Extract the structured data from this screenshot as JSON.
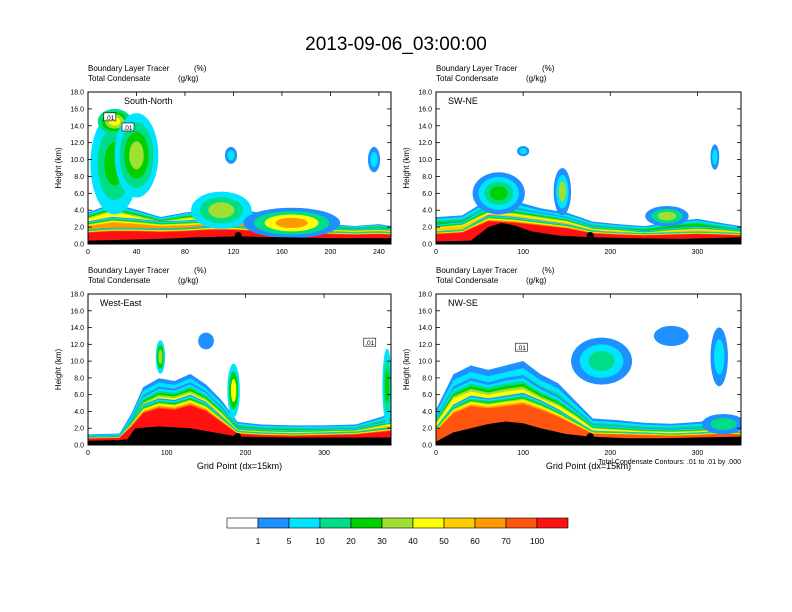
{
  "title": "2013-09-06_03:00:00",
  "panel_header": {
    "left_line1": "Boundary Layer Tracer",
    "left_line2": "Total Condensate",
    "right_line1": "(%)",
    "right_line2": "(g/kg)"
  },
  "footnote": "Total Condensate Contours: .01 to .01 by .000",
  "colorbar": {
    "colors": [
      "#ffffff",
      "#1e90ff",
      "#00e5ff",
      "#00dd88",
      "#00d000",
      "#a0e030",
      "#ffff00",
      "#ffcc00",
      "#ff9900",
      "#ff5511",
      "#ff1111"
    ],
    "labels": [
      "1",
      "5",
      "10",
      "20",
      "30",
      "40",
      "50",
      "60",
      "70",
      "100"
    ]
  },
  "chart_data": [
    {
      "type": "heatmap",
      "name": "South-North",
      "xlabel": "",
      "ylabel": "Height (km)",
      "xlim": [
        0,
        250
      ],
      "ylim": [
        0,
        18
      ],
      "xticks": [
        "0",
        "40",
        "80",
        "120",
        "160",
        "200",
        "240"
      ],
      "yticks": [
        "0.0",
        "2.0",
        "4.0",
        "6.0",
        "8.0",
        "10.0",
        "12.0",
        "14.0",
        "16.0",
        "18.0"
      ],
      "marker": {
        "x": 124,
        "y": 1.0
      },
      "contour_labels": [
        {
          "text": ".01",
          "x": 18,
          "y": 15.0
        },
        {
          "text": ".01",
          "x": 33,
          "y": 13.8
        }
      ],
      "terrain": [
        [
          0,
          0.4
        ],
        [
          30,
          0.5
        ],
        [
          60,
          0.6
        ],
        [
          90,
          0.8
        ],
        [
          124,
          0.9
        ],
        [
          160,
          0.8
        ],
        [
          200,
          0.7
        ],
        [
          250,
          0.7
        ]
      ],
      "blobs": [
        {
          "x": 22,
          "y": 9.5,
          "rx": 20,
          "ry": 6,
          "levels": [
            2,
            3,
            4
          ]
        },
        {
          "x": 22,
          "y": 14.5,
          "rx": 14,
          "ry": 1.5,
          "levels": [
            3,
            4,
            5,
            6
          ]
        },
        {
          "x": 40,
          "y": 10.5,
          "rx": 18,
          "ry": 5,
          "levels": [
            2,
            3,
            4,
            5
          ]
        },
        {
          "x": 110,
          "y": 4.0,
          "rx": 25,
          "ry": 2.2,
          "levels": [
            2,
            3,
            5
          ]
        },
        {
          "x": 118,
          "y": 10.5,
          "rx": 5,
          "ry": 1.0,
          "levels": [
            1,
            2
          ]
        },
        {
          "x": 236,
          "y": 10.0,
          "rx": 5,
          "ry": 1.5,
          "levels": [
            1,
            2
          ]
        },
        {
          "x": 168,
          "y": 2.5,
          "rx": 40,
          "ry": 1.8,
          "levels": [
            1,
            3,
            6,
            8
          ]
        }
      ],
      "bands": [
        {
          "x": [
            0,
            20,
            40,
            60,
            80,
            100,
            120,
            140,
            160,
            180,
            200,
            220,
            240,
            250
          ],
          "top": [
            3.5,
            4.5,
            3.8,
            3.0,
            3.5,
            3.8,
            4.0,
            3.5,
            2.8,
            2.5,
            2.2,
            2.0,
            2.2,
            2.0
          ],
          "level": 6
        },
        {
          "x": [
            0,
            20,
            40,
            60,
            80,
            100,
            120,
            140,
            160,
            180,
            200,
            220,
            240,
            250
          ],
          "top": [
            2.5,
            3.0,
            2.8,
            2.5,
            2.6,
            2.8,
            3.0,
            2.6,
            2.2,
            2.0,
            1.8,
            1.7,
            1.8,
            1.7
          ],
          "level": 8
        },
        {
          "x": [
            0,
            20,
            40,
            60,
            80,
            100,
            120,
            140,
            160,
            180,
            200,
            220,
            240,
            250
          ],
          "top": [
            1.6,
            1.8,
            1.8,
            1.7,
            1.8,
            2.0,
            2.0,
            1.8,
            1.6,
            1.5,
            1.4,
            1.3,
            1.4,
            1.3
          ],
          "level": 10
        }
      ]
    },
    {
      "type": "heatmap",
      "name": "SW-NE",
      "xlabel": "",
      "ylabel": "Height (km)",
      "xlim": [
        0,
        350
      ],
      "ylim": [
        0,
        18
      ],
      "xticks": [
        "0",
        "100",
        "200",
        "300"
      ],
      "yticks": [
        "0.0",
        "2.0",
        "4.0",
        "6.0",
        "8.0",
        "10.0",
        "12.0",
        "14.0",
        "16.0",
        "18.0"
      ],
      "marker": {
        "x": 177,
        "y": 1.0
      },
      "contour_labels": [],
      "terrain": [
        [
          0,
          0.3
        ],
        [
          40,
          0.4
        ],
        [
          60,
          2.0
        ],
        [
          75,
          2.5
        ],
        [
          90,
          2.2
        ],
        [
          110,
          1.5
        ],
        [
          140,
          1.0
        ],
        [
          177,
          0.8
        ],
        [
          220,
          0.7
        ],
        [
          280,
          0.6
        ],
        [
          350,
          0.8
        ]
      ],
      "blobs": [
        {
          "x": 72,
          "y": 6.0,
          "rx": 30,
          "ry": 2.5,
          "levels": [
            1,
            2,
            3,
            4
          ]
        },
        {
          "x": 145,
          "y": 6.2,
          "rx": 10,
          "ry": 2.8,
          "levels": [
            1,
            2,
            5
          ]
        },
        {
          "x": 320,
          "y": 10.3,
          "rx": 5,
          "ry": 1.5,
          "levels": [
            1,
            2
          ]
        },
        {
          "x": 100,
          "y": 11.0,
          "rx": 7,
          "ry": 0.6,
          "levels": [
            1,
            2
          ]
        },
        {
          "x": 265,
          "y": 3.3,
          "rx": 25,
          "ry": 1.2,
          "levels": [
            1,
            3,
            5
          ]
        }
      ],
      "bands": [
        {
          "x": [
            0,
            30,
            60,
            90,
            120,
            150,
            180,
            210,
            240,
            270,
            300,
            330,
            350
          ],
          "top": [
            3.0,
            3.2,
            5.0,
            4.8,
            4.0,
            3.5,
            2.5,
            2.2,
            2.0,
            2.5,
            2.8,
            2.3,
            2.0
          ],
          "level": 4
        },
        {
          "x": [
            0,
            30,
            60,
            90,
            120,
            150,
            180,
            210,
            240,
            270,
            300,
            330,
            350
          ],
          "top": [
            2.2,
            2.5,
            4.2,
            4.0,
            3.5,
            3.0,
            2.0,
            1.8,
            1.5,
            1.8,
            2.0,
            1.8,
            1.6
          ],
          "level": 7
        },
        {
          "x": [
            0,
            30,
            60,
            90,
            120,
            150,
            180,
            210,
            240,
            270,
            300,
            330,
            350
          ],
          "top": [
            1.4,
            1.6,
            3.2,
            3.0,
            2.6,
            2.2,
            1.5,
            1.3,
            1.2,
            1.3,
            1.4,
            1.3,
            1.2
          ],
          "level": 10
        }
      ]
    },
    {
      "type": "heatmap",
      "name": "West-East",
      "xlabel": "Grid Point (dx=15km)",
      "ylabel": "Height (km)",
      "xlim": [
        0,
        385
      ],
      "ylim": [
        0,
        18
      ],
      "xticks": [
        "0",
        "100",
        "200",
        "300"
      ],
      "yticks": [
        "0.0",
        "2.0",
        "4.0",
        "6.0",
        "8.0",
        "10.0",
        "12.0",
        "14.0",
        "16.0",
        "18.0"
      ],
      "marker": {
        "x": 190,
        "y": 1.0
      },
      "contour_labels": [
        {
          "text": ".01",
          "x": 358,
          "y": 12.2
        }
      ],
      "terrain": [
        [
          0,
          0.5
        ],
        [
          40,
          0.6
        ],
        [
          50,
          0.7
        ],
        [
          60,
          2.0
        ],
        [
          90,
          2.2
        ],
        [
          130,
          2.0
        ],
        [
          160,
          1.5
        ],
        [
          190,
          1.0
        ],
        [
          250,
          0.9
        ],
        [
          300,
          0.9
        ],
        [
          385,
          0.9
        ]
      ],
      "blobs": [
        {
          "x": 92,
          "y": 10.5,
          "rx": 6,
          "ry": 2.0,
          "levels": [
            2,
            4,
            5
          ]
        },
        {
          "x": 150,
          "y": 12.4,
          "rx": 10,
          "ry": 1.0,
          "levels": [
            1
          ]
        },
        {
          "x": 185,
          "y": 6.5,
          "rx": 8,
          "ry": 3.2,
          "levels": [
            2,
            4,
            6
          ]
        },
        {
          "x": 380,
          "y": 7.0,
          "rx": 6,
          "ry": 4.5,
          "levels": [
            2,
            3,
            4
          ]
        }
      ],
      "bands": [
        {
          "x": [
            0,
            40,
            55,
            70,
            90,
            110,
            130,
            150,
            170,
            190,
            220,
            260,
            300,
            340,
            385
          ],
          "top": [
            1.2,
            1.3,
            3.5,
            6.5,
            7.5,
            7.2,
            8.0,
            6.8,
            5.0,
            2.6,
            2.3,
            2.2,
            2.2,
            2.3,
            3.5
          ],
          "level": 4
        },
        {
          "x": [
            0,
            40,
            55,
            70,
            90,
            110,
            130,
            150,
            170,
            190,
            220,
            260,
            300,
            340,
            385
          ],
          "top": [
            1.0,
            1.1,
            3.0,
            5.5,
            6.5,
            6.3,
            7.0,
            6.0,
            4.2,
            2.0,
            1.8,
            1.7,
            1.8,
            1.9,
            2.8
          ],
          "level": 7
        },
        {
          "x": [
            0,
            40,
            55,
            70,
            90,
            110,
            130,
            150,
            170,
            190,
            220,
            260,
            300,
            340,
            385
          ],
          "top": [
            0.9,
            1.0,
            2.6,
            4.5,
            5.2,
            5.0,
            5.6,
            4.8,
            3.2,
            1.6,
            1.4,
            1.3,
            1.4,
            1.5,
            2.0
          ],
          "level": 10
        }
      ]
    },
    {
      "type": "heatmap",
      "name": "NW-SE",
      "xlabel": "Grid Point (dx=15km)",
      "ylabel": "Height (km)",
      "xlim": [
        0,
        350
      ],
      "ylim": [
        0,
        18
      ],
      "xticks": [
        "0",
        "100",
        "200",
        "300"
      ],
      "yticks": [
        "0.0",
        "2.0",
        "4.0",
        "6.0",
        "8.0",
        "10.0",
        "12.0",
        "14.0",
        "16.0",
        "18.0"
      ],
      "marker": {
        "x": 177,
        "y": 1.0
      },
      "contour_labels": [
        {
          "text": ".01",
          "x": 98,
          "y": 11.6
        }
      ],
      "terrain": [
        [
          0,
          0.4
        ],
        [
          20,
          1.5
        ],
        [
          40,
          2.0
        ],
        [
          60,
          2.5
        ],
        [
          80,
          2.8
        ],
        [
          100,
          2.6
        ],
        [
          120,
          2.0
        ],
        [
          150,
          1.3
        ],
        [
          177,
          1.0
        ],
        [
          220,
          0.8
        ],
        [
          260,
          0.8
        ],
        [
          300,
          0.9
        ],
        [
          350,
          1.0
        ]
      ],
      "blobs": [
        {
          "x": 190,
          "y": 10.0,
          "rx": 35,
          "ry": 2.8,
          "levels": [
            1,
            2,
            3
          ]
        },
        {
          "x": 270,
          "y": 13.0,
          "rx": 20,
          "ry": 1.2,
          "levels": [
            1
          ]
        },
        {
          "x": 325,
          "y": 10.5,
          "rx": 10,
          "ry": 3.5,
          "levels": [
            1,
            2
          ]
        },
        {
          "x": 330,
          "y": 2.5,
          "rx": 25,
          "ry": 1.2,
          "levels": [
            1,
            3
          ]
        }
      ],
      "bands": [
        {
          "x": [
            0,
            20,
            40,
            60,
            80,
            100,
            120,
            140,
            160,
            180,
            210,
            240,
            270,
            300,
            330,
            350
          ],
          "top": [
            4.0,
            8.0,
            9.0,
            8.5,
            9.0,
            9.5,
            8.0,
            7.0,
            5.0,
            3.0,
            2.8,
            2.5,
            2.4,
            2.6,
            3.0,
            2.8
          ],
          "level": 3
        },
        {
          "x": [
            0,
            20,
            40,
            60,
            80,
            100,
            120,
            140,
            160,
            180,
            210,
            240,
            270,
            300,
            330,
            350
          ],
          "top": [
            3.0,
            6.5,
            7.5,
            7.0,
            7.5,
            7.8,
            6.5,
            5.5,
            4.0,
            2.3,
            2.1,
            1.9,
            1.8,
            1.9,
            2.2,
            2.0
          ],
          "level": 6
        },
        {
          "x": [
            0,
            20,
            40,
            60,
            80,
            100,
            120,
            140,
            160,
            180,
            210,
            240,
            270,
            300,
            330,
            350
          ],
          "top": [
            2.0,
            4.5,
            5.5,
            5.2,
            5.5,
            5.8,
            5.0,
            4.0,
            2.8,
            1.6,
            1.5,
            1.4,
            1.3,
            1.4,
            1.6,
            1.5
          ],
          "level": 9
        }
      ]
    }
  ]
}
